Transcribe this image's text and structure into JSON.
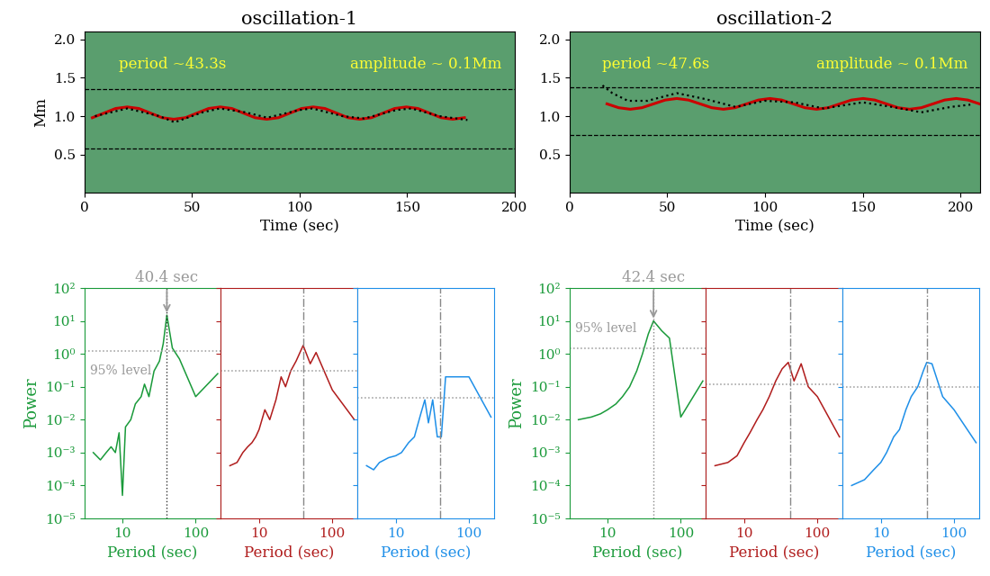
{
  "chart_data": [
    {
      "type": "line",
      "title": "oscillation-1",
      "xlabel": "Time (sec)",
      "ylabel": "Mm",
      "xlim": [
        0,
        200
      ],
      "xticks": [
        0,
        50,
        100,
        150,
        200
      ],
      "ylim": [
        0,
        2.1
      ],
      "yticks": [
        {
          "value": 0.5,
          "label": "0.5"
        },
        {
          "value": 1.0,
          "label": "1.0"
        },
        {
          "value": 1.5,
          "label": "1.5"
        },
        {
          "value": 2.0,
          "label": "2.0"
        }
      ],
      "annotations": [
        "period ~43.3s",
        "amplitude ~ 0.1Mm"
      ],
      "reference_lines": [
        1.35,
        0.58
      ],
      "series": [
        {
          "color": "#cc0000",
          "line_style": "solid",
          "x": [
            3.8,
            9.2,
            14.6,
            20,
            25.4,
            30.8,
            36.2,
            41.6,
            47,
            52.4,
            57.8,
            63.2,
            68.6,
            74,
            79.4,
            84.8,
            90.2,
            95.6,
            101,
            106.4,
            111.8,
            117.2,
            122.6,
            128,
            133.4,
            138.8,
            144.2,
            149.6,
            155,
            160.4,
            165.8,
            171.2,
            176.6
          ],
          "values": [
            0.98,
            1.04,
            1.1,
            1.12,
            1.1,
            1.04,
            0.98,
            0.96,
            0.98,
            1.04,
            1.1,
            1.12,
            1.1,
            1.04,
            0.98,
            0.96,
            0.98,
            1.04,
            1.1,
            1.12,
            1.1,
            1.04,
            0.98,
            0.96,
            0.98,
            1.04,
            1.1,
            1.12,
            1.1,
            1.04,
            0.98,
            0.96,
            0.98
          ]
        },
        {
          "color": "#000000",
          "line_style": "dotted",
          "x": [
            5,
            20,
            35,
            42,
            55,
            63,
            75,
            85,
            100,
            106,
            120,
            130,
            145,
            152,
            165,
            178
          ],
          "values": [
            1.0,
            1.1,
            1.0,
            0.92,
            1.05,
            1.1,
            1.05,
            0.98,
            1.08,
            1.1,
            1.0,
            0.97,
            1.08,
            1.1,
            1.0,
            0.95
          ]
        }
      ]
    },
    {
      "type": "line",
      "title": "oscillation-2",
      "xlabel": "Time (sec)",
      "xlim": [
        0,
        210
      ],
      "xticks": [
        0,
        50,
        100,
        150,
        200
      ],
      "ylim": [
        0,
        2.1
      ],
      "yticks": [
        {
          "value": 0.5,
          "label": "0.5"
        },
        {
          "value": 1.0,
          "label": "1.0"
        },
        {
          "value": 1.5,
          "label": "1.5"
        },
        {
          "value": 2.0,
          "label": "2.0"
        }
      ],
      "annotations": [
        "period ~47.6s",
        "amplitude ~ 0.1Mm"
      ],
      "reference_lines": [
        1.38,
        0.75
      ],
      "series": [
        {
          "color": "#cc0000",
          "line_style": "solid",
          "x": [
            19.3,
            25.25,
            31.2,
            37.15,
            43.1,
            49.05,
            55,
            60.95,
            66.9,
            72.85,
            78.8,
            84.75,
            90.7,
            96.65,
            102.6,
            108.55,
            114.5,
            120.45,
            126.4,
            132.35,
            138.3,
            144.25,
            150.2,
            156.15,
            162.1,
            168.05,
            174,
            179.95,
            185.9,
            191.85,
            197.8,
            203.75,
            209.7
          ],
          "values": [
            1.16,
            1.11,
            1.09,
            1.11,
            1.16,
            1.21,
            1.23,
            1.21,
            1.16,
            1.11,
            1.09,
            1.11,
            1.16,
            1.21,
            1.23,
            1.21,
            1.16,
            1.11,
            1.09,
            1.11,
            1.16,
            1.21,
            1.23,
            1.21,
            1.16,
            1.11,
            1.09,
            1.11,
            1.16,
            1.21,
            1.23,
            1.21,
            1.16
          ]
        },
        {
          "color": "#000000",
          "line_style": "dotted",
          "x": [
            17,
            22,
            30,
            40,
            55,
            70,
            85,
            100,
            115,
            130,
            150,
            165,
            180,
            195,
            205
          ],
          "values": [
            1.4,
            1.3,
            1.2,
            1.2,
            1.3,
            1.22,
            1.12,
            1.2,
            1.18,
            1.1,
            1.18,
            1.12,
            1.05,
            1.12,
            1.15
          ]
        }
      ]
    },
    {
      "type": "line",
      "log": true,
      "xlabel": "Period (sec)",
      "ylabel": "Power",
      "color": "#1a9a3a",
      "xlim": [
        3,
        220
      ],
      "xticks": [
        10,
        100
      ],
      "ylim": [
        1e-05,
        100
      ],
      "yticks": [
        {
          "value": 1e-05,
          "label": "10⁻⁵"
        },
        {
          "value": 0.0001,
          "label": "10⁻⁴"
        },
        {
          "value": 0.001,
          "label": "10⁻³"
        },
        {
          "value": 0.01,
          "label": "10⁻²"
        },
        {
          "value": 0.1,
          "label": "10⁻¹"
        },
        {
          "value": 1,
          "label": "10⁰"
        },
        {
          "value": 10,
          "label": "10¹"
        },
        {
          "value": 100,
          "label": "10²"
        }
      ],
      "annotations": [
        "40.4 sec",
        "95% level"
      ],
      "period_line": 40.4,
      "level_95": 1.2,
      "x": [
        4,
        5,
        6,
        7,
        8,
        9,
        10,
        11,
        13,
        15,
        18,
        20,
        23,
        27,
        32,
        36,
        40.4,
        48,
        60,
        100,
        200
      ],
      "values": [
        0.001,
        0.0006,
        0.001,
        0.0015,
        0.001,
        0.004,
        5e-05,
        0.006,
        0.01,
        0.03,
        0.05,
        0.12,
        0.05,
        0.3,
        0.6,
        2,
        15,
        1.5,
        0.7,
        0.05,
        0.25
      ]
    },
    {
      "type": "line",
      "log": true,
      "xlabel": "Period (sec)",
      "color": "#b01c1c",
      "tick_labels": "x",
      "xlim": [
        3,
        220
      ],
      "xticks": [
        10,
        100
      ],
      "ylim": [
        1e-05,
        100
      ],
      "yticks": [
        1e-05,
        0.0001,
        0.001,
        0.01,
        0.1,
        1,
        10,
        100
      ],
      "period_line": 40.4,
      "level_95": 0.3,
      "x": [
        4,
        5,
        6,
        7,
        8,
        9,
        10,
        12,
        14,
        17,
        20,
        23,
        27,
        32,
        40,
        50,
        60,
        70,
        100,
        200
      ],
      "values": [
        0.0004,
        0.0005,
        0.001,
        0.0015,
        0.002,
        0.003,
        0.005,
        0.02,
        0.01,
        0.04,
        0.2,
        0.1,
        0.3,
        0.6,
        1.8,
        0.5,
        1.1,
        0.5,
        0.08,
        0.01
      ]
    },
    {
      "type": "line",
      "log": true,
      "xlabel": "Period (sec)",
      "color": "#1e8fe8",
      "tick_labels": "x",
      "xlim": [
        3,
        220
      ],
      "xticks": [
        10,
        100
      ],
      "ylim": [
        1e-05,
        100
      ],
      "yticks": [
        1e-05,
        0.0001,
        0.001,
        0.01,
        0.1,
        1,
        10,
        100
      ],
      "period_line": 40.4,
      "level_95": 0.045,
      "x": [
        4,
        5,
        6,
        8,
        10,
        12,
        15,
        18,
        22,
        25,
        28,
        32,
        37,
        42,
        48,
        100,
        200
      ],
      "values": [
        0.0004,
        0.0003,
        0.0005,
        0.0007,
        0.0008,
        0.001,
        0.002,
        0.003,
        0.015,
        0.04,
        0.008,
        0.04,
        0.003,
        0.003,
        0.2,
        0.2,
        0.012
      ]
    },
    {
      "type": "line",
      "log": true,
      "xlabel": "Period (sec)",
      "ylabel": "Power",
      "color": "#1a9a3a",
      "xlim": [
        3,
        220
      ],
      "xticks": [
        10,
        100
      ],
      "ylim": [
        1e-05,
        100
      ],
      "yticks": [
        {
          "value": 1e-05,
          "label": "10⁻⁵"
        },
        {
          "value": 0.0001,
          "label": "10⁻⁴"
        },
        {
          "value": 0.001,
          "label": "10⁻³"
        },
        {
          "value": 0.01,
          "label": "10⁻²"
        },
        {
          "value": 0.1,
          "label": "10⁻¹"
        },
        {
          "value": 1,
          "label": "10⁰"
        },
        {
          "value": 10,
          "label": "10¹"
        },
        {
          "value": 100,
          "label": "10²"
        }
      ],
      "annotations": [
        "42.4 sec",
        "95% level"
      ],
      "period_line": 42.4,
      "level_95": 1.5,
      "x": [
        4,
        6,
        8,
        10,
        13,
        16,
        20,
        25,
        30,
        36,
        42.4,
        55,
        70,
        100,
        200
      ],
      "values": [
        0.01,
        0.012,
        0.015,
        0.02,
        0.03,
        0.05,
        0.1,
        0.3,
        1,
        4,
        10,
        5,
        3,
        0.012,
        0.15
      ]
    },
    {
      "type": "line",
      "log": true,
      "xlabel": "Period (sec)",
      "color": "#b01c1c",
      "tick_labels": "x",
      "xlim": [
        3,
        220
      ],
      "xticks": [
        10,
        100
      ],
      "ylim": [
        1e-05,
        100
      ],
      "yticks": [
        1e-05,
        0.0001,
        0.001,
        0.01,
        0.1,
        1,
        10,
        100
      ],
      "period_line": 42.4,
      "level_95": 0.12,
      "x": [
        4,
        6,
        8,
        10,
        12,
        15,
        18,
        22,
        27,
        33,
        40,
        48,
        60,
        75,
        100,
        200
      ],
      "values": [
        0.0004,
        0.0005,
        0.0008,
        0.002,
        0.004,
        0.01,
        0.02,
        0.05,
        0.15,
        0.35,
        0.55,
        0.15,
        0.5,
        0.1,
        0.05,
        0.003
      ]
    },
    {
      "type": "line",
      "log": true,
      "xlabel": "Period (sec)",
      "color": "#1e8fe8",
      "tick_labels": "x",
      "xlim": [
        3,
        220
      ],
      "xticks": [
        10,
        100
      ],
      "ylim": [
        1e-05,
        100
      ],
      "yticks": [
        1e-05,
        0.0001,
        0.001,
        0.01,
        0.1,
        1,
        10,
        100
      ],
      "period_line": 42.4,
      "level_95": 0.1,
      "x": [
        4,
        6,
        8,
        10,
        12,
        15,
        18,
        22,
        26,
        32,
        38,
        42.4,
        50,
        70,
        100,
        200
      ],
      "values": [
        0.0001,
        0.00015,
        0.0003,
        0.0005,
        0.001,
        0.003,
        0.005,
        0.02,
        0.05,
        0.1,
        0.3,
        0.55,
        0.5,
        0.05,
        0.02,
        0.002
      ]
    }
  ]
}
